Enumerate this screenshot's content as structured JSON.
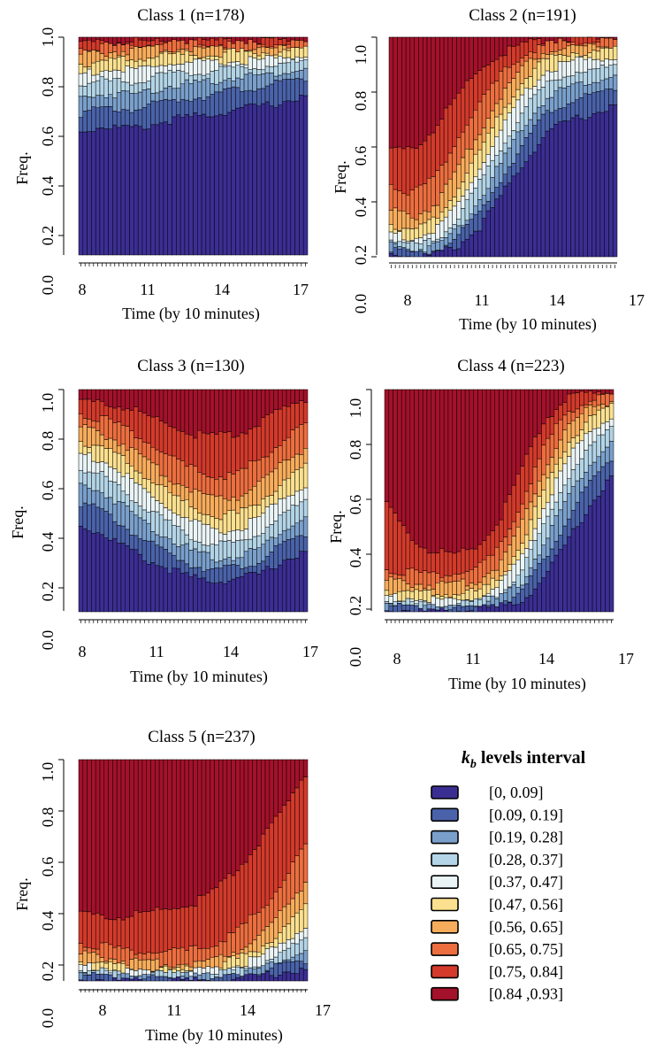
{
  "chart_data": [
    {
      "type": "bar",
      "stacked": true,
      "title": "Class 1 (n=178)",
      "xlabel": "Time (by 10 minutes)",
      "ylabel": "Freq.",
      "x_ticks": [
        "8",
        "11",
        "14",
        "17"
      ],
      "y_ticks": [
        "0.0",
        "0.2",
        "0.4",
        "0.6",
        "0.8",
        "1.0"
      ],
      "xlim": [
        8,
        17
      ],
      "ylim": [
        0,
        1
      ],
      "n_bars": 54,
      "profile": {
        "x": [
          0,
          0.1,
          0.25,
          0.4,
          0.55,
          0.7,
          0.85,
          1
        ],
        "cumulative": [
          [
            0.58,
            0.6,
            0.59,
            0.63,
            0.65,
            0.68,
            0.7,
            0.74
          ],
          [
            0.66,
            0.68,
            0.68,
            0.72,
            0.74,
            0.77,
            0.79,
            0.82
          ],
          [
            0.73,
            0.75,
            0.75,
            0.79,
            0.8,
            0.83,
            0.84,
            0.87
          ],
          [
            0.79,
            0.81,
            0.81,
            0.84,
            0.85,
            0.87,
            0.88,
            0.9
          ],
          [
            0.84,
            0.86,
            0.86,
            0.89,
            0.89,
            0.9,
            0.91,
            0.93
          ],
          [
            0.89,
            0.9,
            0.91,
            0.93,
            0.93,
            0.94,
            0.94,
            0.95
          ],
          [
            0.93,
            0.94,
            0.95,
            0.96,
            0.96,
            0.96,
            0.96,
            0.97
          ],
          [
            0.96,
            0.97,
            0.97,
            0.98,
            0.98,
            0.98,
            0.98,
            0.98
          ],
          [
            0.985,
            0.99,
            0.99,
            0.99,
            0.99,
            0.99,
            0.99,
            0.99
          ],
          [
            1,
            1,
            1,
            1,
            1,
            1,
            1,
            1
          ]
        ]
      }
    },
    {
      "type": "bar",
      "stacked": true,
      "title": "Class 2 (n=191)",
      "xlabel": "Time (by 10 minutes)",
      "ylabel": "Freq.",
      "x_ticks": [
        "8",
        "11",
        "14",
        "17"
      ],
      "y_ticks": [
        "0.0",
        "0.2",
        "0.4",
        "0.6",
        "0.8",
        "1.0"
      ],
      "xlim": [
        8,
        17
      ],
      "ylim": [
        0,
        1
      ],
      "n_bars": 54,
      "profile": {
        "x": [
          0,
          0.1,
          0.2,
          0.3,
          0.4,
          0.5,
          0.6,
          0.7,
          0.8,
          0.9,
          1
        ],
        "cumulative": [
          [
            0.03,
            0.01,
            0.02,
            0.06,
            0.15,
            0.3,
            0.45,
            0.58,
            0.63,
            0.66,
            0.7
          ],
          [
            0.05,
            0.02,
            0.04,
            0.1,
            0.22,
            0.38,
            0.54,
            0.67,
            0.72,
            0.74,
            0.78
          ],
          [
            0.07,
            0.04,
            0.06,
            0.14,
            0.28,
            0.45,
            0.62,
            0.74,
            0.79,
            0.81,
            0.84
          ],
          [
            0.09,
            0.06,
            0.09,
            0.19,
            0.35,
            0.52,
            0.69,
            0.8,
            0.85,
            0.86,
            0.88
          ],
          [
            0.12,
            0.09,
            0.13,
            0.25,
            0.42,
            0.6,
            0.76,
            0.86,
            0.9,
            0.91,
            0.92
          ],
          [
            0.16,
            0.13,
            0.18,
            0.32,
            0.5,
            0.68,
            0.83,
            0.91,
            0.94,
            0.94,
            0.95
          ],
          [
            0.22,
            0.19,
            0.25,
            0.41,
            0.59,
            0.76,
            0.89,
            0.95,
            0.97,
            0.97,
            0.97
          ],
          [
            0.34,
            0.3,
            0.38,
            0.55,
            0.71,
            0.85,
            0.94,
            0.98,
            0.99,
            0.99,
            0.99
          ],
          [
            0.5,
            0.5,
            0.6,
            0.75,
            0.87,
            0.94,
            0.98,
            0.995,
            1,
            1,
            1
          ],
          [
            1,
            1,
            1,
            1,
            1,
            1,
            1,
            1,
            1,
            1,
            1
          ]
        ]
      }
    },
    {
      "type": "bar",
      "stacked": true,
      "title": "Class 3 (n=130)",
      "xlabel": "Time (by 10 minutes)",
      "ylabel": "Freq.",
      "x_ticks": [
        "8",
        "11",
        "14",
        "17"
      ],
      "y_ticks": [
        "0.0",
        "0.2",
        "0.4",
        "0.6",
        "0.8",
        "1.0"
      ],
      "xlim": [
        8,
        17
      ],
      "ylim": [
        0,
        1
      ],
      "n_bars": 54,
      "profile": {
        "x": [
          0,
          0.1,
          0.2,
          0.3,
          0.4,
          0.5,
          0.6,
          0.7,
          0.8,
          0.9,
          1
        ],
        "cumulative": [
          [
            0.4,
            0.36,
            0.3,
            0.24,
            0.2,
            0.16,
            0.15,
            0.16,
            0.18,
            0.24,
            0.28
          ],
          [
            0.5,
            0.46,
            0.39,
            0.32,
            0.27,
            0.22,
            0.2,
            0.21,
            0.24,
            0.31,
            0.36
          ],
          [
            0.58,
            0.55,
            0.48,
            0.4,
            0.34,
            0.28,
            0.25,
            0.26,
            0.3,
            0.38,
            0.44
          ],
          [
            0.65,
            0.62,
            0.55,
            0.47,
            0.4,
            0.34,
            0.31,
            0.32,
            0.37,
            0.45,
            0.51
          ],
          [
            0.72,
            0.69,
            0.62,
            0.54,
            0.47,
            0.41,
            0.37,
            0.38,
            0.44,
            0.52,
            0.58
          ],
          [
            0.78,
            0.75,
            0.69,
            0.61,
            0.54,
            0.48,
            0.44,
            0.45,
            0.51,
            0.59,
            0.66
          ],
          [
            0.84,
            0.81,
            0.76,
            0.68,
            0.61,
            0.56,
            0.52,
            0.53,
            0.6,
            0.68,
            0.75
          ],
          [
            0.9,
            0.88,
            0.84,
            0.77,
            0.7,
            0.65,
            0.62,
            0.63,
            0.7,
            0.78,
            0.85
          ],
          [
            0.96,
            0.95,
            0.93,
            0.89,
            0.85,
            0.81,
            0.8,
            0.81,
            0.86,
            0.92,
            0.97
          ],
          [
            1,
            1,
            1,
            1,
            1,
            1,
            1,
            1,
            1,
            1,
            1
          ]
        ]
      }
    },
    {
      "type": "bar",
      "stacked": true,
      "title": "Class 4 (n=223)",
      "xlabel": "Time (by 10 minutes)",
      "ylabel": "Freq.",
      "x_ticks": [
        "8",
        "11",
        "14",
        "17"
      ],
      "y_ticks": [
        "0.0",
        "0.2",
        "0.4",
        "0.6",
        "0.8",
        "1.0"
      ],
      "xlim": [
        8,
        17
      ],
      "ylim": [
        0,
        1
      ],
      "n_bars": 54,
      "profile": {
        "x": [
          0,
          0.1,
          0.2,
          0.3,
          0.4,
          0.5,
          0.6,
          0.7,
          0.8,
          0.9,
          1
        ],
        "cumulative": [
          [
            0.02,
            0.02,
            0.01,
            0.01,
            0.02,
            0.03,
            0.06,
            0.16,
            0.32,
            0.48,
            0.62
          ],
          [
            0.03,
            0.03,
            0.02,
            0.02,
            0.03,
            0.05,
            0.1,
            0.24,
            0.42,
            0.58,
            0.7
          ],
          [
            0.04,
            0.04,
            0.03,
            0.03,
            0.04,
            0.07,
            0.14,
            0.32,
            0.52,
            0.67,
            0.78
          ],
          [
            0.06,
            0.05,
            0.04,
            0.04,
            0.05,
            0.09,
            0.19,
            0.4,
            0.61,
            0.75,
            0.84
          ],
          [
            0.08,
            0.07,
            0.06,
            0.06,
            0.07,
            0.12,
            0.25,
            0.48,
            0.69,
            0.82,
            0.89
          ],
          [
            0.11,
            0.1,
            0.09,
            0.09,
            0.1,
            0.16,
            0.32,
            0.56,
            0.76,
            0.88,
            0.93
          ],
          [
            0.15,
            0.14,
            0.13,
            0.13,
            0.15,
            0.22,
            0.41,
            0.65,
            0.84,
            0.93,
            0.96
          ],
          [
            0.2,
            0.19,
            0.18,
            0.18,
            0.2,
            0.29,
            0.5,
            0.75,
            0.91,
            0.96,
            0.98
          ],
          [
            0.5,
            0.35,
            0.28,
            0.27,
            0.3,
            0.42,
            0.65,
            0.87,
            0.97,
            0.99,
            1
          ],
          [
            1,
            1,
            1,
            1,
            1,
            1,
            1,
            1,
            1,
            1,
            1
          ]
        ]
      }
    },
    {
      "type": "bar",
      "stacked": true,
      "title": "Class 5 (n=237)",
      "xlabel": "Time (by 10 minutes)",
      "ylabel": "Freq.",
      "x_ticks": [
        "8",
        "11",
        "14",
        "17"
      ],
      "y_ticks": [
        "0.0",
        "0.2",
        "0.4",
        "0.6",
        "0.8",
        "1.0"
      ],
      "xlim": [
        8,
        17
      ],
      "ylim": [
        0,
        1
      ],
      "n_bars": 54,
      "profile": {
        "x": [
          0,
          0.1,
          0.2,
          0.3,
          0.4,
          0.5,
          0.6,
          0.7,
          0.8,
          0.9,
          1
        ],
        "cumulative": [
          [
            0.02,
            0.02,
            0.01,
            0.01,
            0.01,
            0.01,
            0.01,
            0.02,
            0.03,
            0.05,
            0.06
          ],
          [
            0.03,
            0.03,
            0.02,
            0.02,
            0.02,
            0.02,
            0.02,
            0.03,
            0.05,
            0.08,
            0.1
          ],
          [
            0.04,
            0.04,
            0.03,
            0.03,
            0.03,
            0.03,
            0.03,
            0.04,
            0.07,
            0.11,
            0.15
          ],
          [
            0.06,
            0.05,
            0.04,
            0.04,
            0.04,
            0.04,
            0.04,
            0.06,
            0.09,
            0.14,
            0.2
          ],
          [
            0.08,
            0.07,
            0.05,
            0.05,
            0.05,
            0.05,
            0.06,
            0.08,
            0.12,
            0.18,
            0.26
          ],
          [
            0.1,
            0.09,
            0.07,
            0.06,
            0.06,
            0.06,
            0.08,
            0.11,
            0.16,
            0.24,
            0.34
          ],
          [
            0.13,
            0.12,
            0.1,
            0.09,
            0.09,
            0.09,
            0.11,
            0.15,
            0.22,
            0.33,
            0.46
          ],
          [
            0.18,
            0.17,
            0.15,
            0.14,
            0.14,
            0.15,
            0.18,
            0.24,
            0.33,
            0.46,
            0.62
          ],
          [
            0.32,
            0.3,
            0.3,
            0.32,
            0.34,
            0.36,
            0.42,
            0.52,
            0.64,
            0.78,
            0.95
          ],
          [
            1,
            1,
            1,
            1,
            1,
            1,
            1,
            1,
            1,
            1,
            1
          ]
        ]
      }
    }
  ],
  "legend": {
    "title_main": "k",
    "title_sub": "b",
    "title_rest": " levels interval",
    "items": [
      {
        "label": "[0, 0.09]",
        "color": "#3b2e93"
      },
      {
        "label": "[0.09, 0.19]",
        "color": "#4a62a9"
      },
      {
        "label": "[0.19, 0.28]",
        "color": "#7a9fcb"
      },
      {
        "label": "[0.28, 0.37]",
        "color": "#b3d4e6"
      },
      {
        "label": "[0.37, 0.47]",
        "color": "#eaf4f6"
      },
      {
        "label": "[0.47, 0.56]",
        "color": "#fbe08f"
      },
      {
        "label": "[0.56, 0.65]",
        "color": "#f7ac5b"
      },
      {
        "label": "[0.65, 0.75]",
        "color": "#ec6e3f"
      },
      {
        "label": "[0.75, 0.84]",
        "color": "#d33a2b"
      },
      {
        "label": "[0.84 ,0.93]",
        "color": "#a3112a"
      }
    ]
  }
}
